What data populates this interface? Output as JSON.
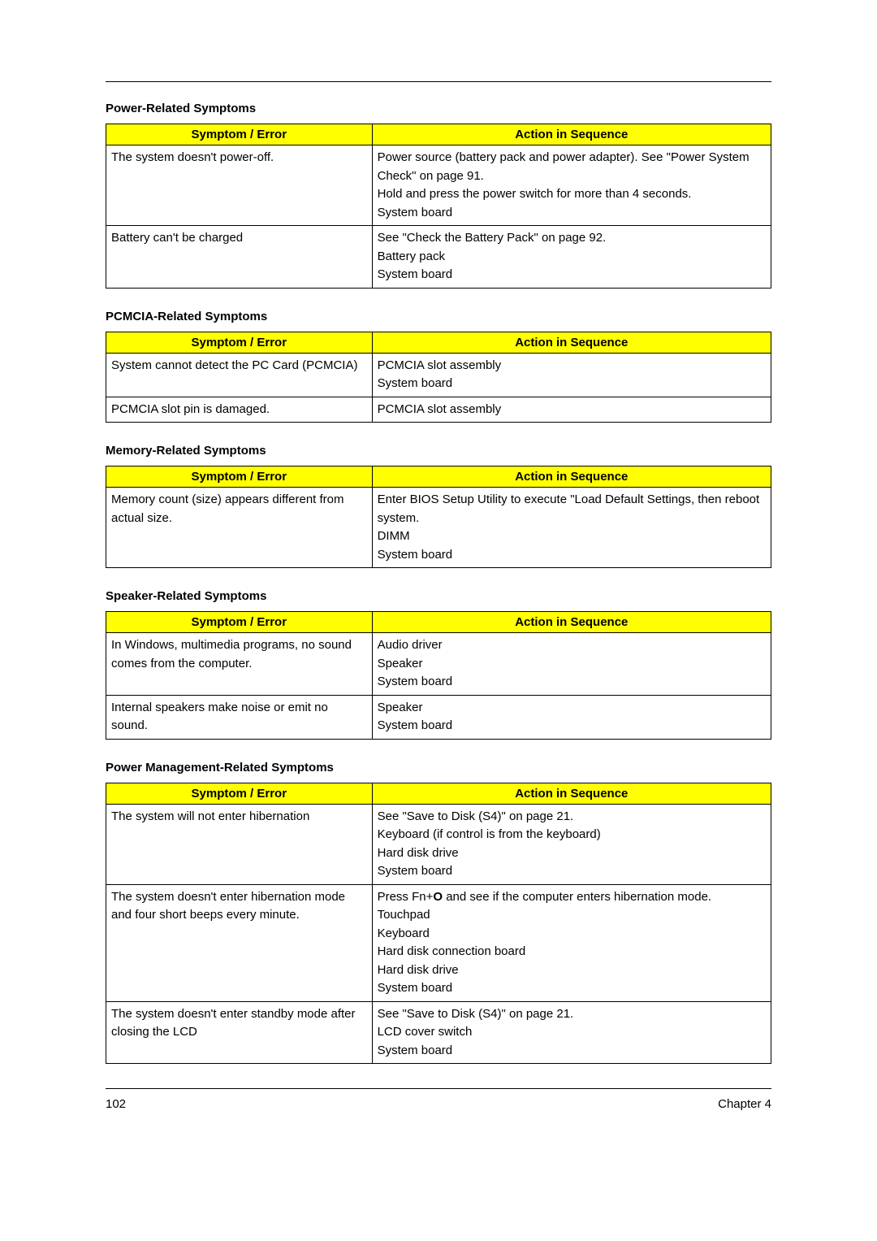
{
  "page": {
    "number": "102",
    "chapter": "Chapter 4"
  },
  "header": {
    "symptom": "Symptom / Error",
    "action": "Action in Sequence"
  },
  "colors": {
    "header_bg": "#ffff00",
    "border": "#000000",
    "text": "#000000",
    "background": "#ffffff"
  },
  "sections": [
    {
      "title": "Power-Related Symptoms",
      "rows": [
        {
          "symptom": "The system doesn't power-off.",
          "actions": [
            "Power source (battery pack and power adapter). See \"Power System Check\" on page 91.",
            "Hold and press the power switch for more than 4 seconds.",
            "System board"
          ]
        },
        {
          "symptom": "Battery can't be charged",
          "actions": [
            "See \"Check the Battery Pack\" on page 92.",
            "Battery pack",
            "System board"
          ]
        }
      ]
    },
    {
      "title": "PCMCIA-Related Symptoms",
      "rows": [
        {
          "symptom": "System cannot detect the PC Card (PCMCIA)",
          "actions": [
            "PCMCIA slot assembly",
            "System board"
          ]
        },
        {
          "symptom": "PCMCIA slot pin is damaged.",
          "actions": [
            "PCMCIA slot assembly"
          ]
        }
      ]
    },
    {
      "title": "Memory-Related Symptoms",
      "rows": [
        {
          "symptom": "Memory count (size) appears different from actual size.",
          "actions": [
            "Enter BIOS Setup Utility to execute \"Load Default Settings, then reboot system.",
            "DIMM",
            "System board"
          ]
        }
      ]
    },
    {
      "title": "Speaker-Related Symptoms",
      "rows": [
        {
          "symptom": "In Windows, multimedia programs, no sound comes from the computer.",
          "actions": [
            "Audio driver",
            "Speaker",
            "System board"
          ]
        },
        {
          "symptom": "Internal speakers make noise or emit no sound.",
          "actions": [
            "Speaker",
            "System board"
          ]
        }
      ]
    },
    {
      "title": "Power Management-Related Symptoms",
      "rows": [
        {
          "symptom": "The system will not enter hibernation",
          "actions": [
            "See \"Save to Disk (S4)\" on page 21.",
            "Keyboard (if control is from the keyboard)",
            "Hard disk drive",
            "System board"
          ]
        },
        {
          "symptom": "The system doesn't enter hibernation mode and four short beeps every minute.",
          "special_first": {
            "prefix": "Press Fn+",
            "bold": "O",
            "suffix": " and see if the computer enters hibernation mode."
          },
          "actions": [
            "Touchpad",
            "Keyboard",
            "Hard disk connection board",
            "Hard disk drive",
            "System board"
          ]
        },
        {
          "symptom": "The system doesn't enter standby mode after closing the LCD",
          "actions": [
            "See \"Save to Disk (S4)\" on page 21.",
            "LCD cover switch",
            "System board"
          ]
        }
      ]
    }
  ]
}
